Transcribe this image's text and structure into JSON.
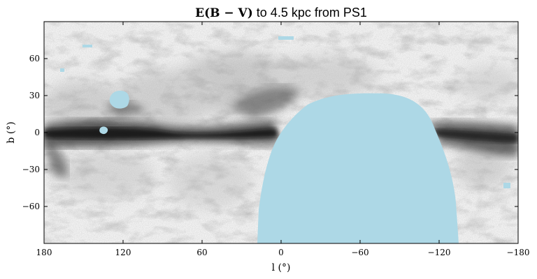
{
  "title": {
    "math": "E(B − V)",
    "text": " to 4.5 kpc from PS1"
  },
  "axes": {
    "xlabel": "l (°)",
    "ylabel": "b (°)",
    "xlim": [
      180,
      -180
    ],
    "ylim": [
      -90,
      90
    ],
    "xticks": [
      180,
      120,
      60,
      0,
      -60,
      -120,
      -180
    ],
    "yticks": [
      60,
      30,
      0,
      -30,
      -60
    ]
  },
  "tick_text": {
    "x": [
      "180",
      "120",
      "60",
      "0",
      "−60",
      "−120",
      "−180"
    ],
    "y": [
      "60",
      "30",
      "0",
      "−30",
      "−60"
    ]
  },
  "map": {
    "colormap": "grayscale (white = low, black = high extinction)",
    "no_data_color": "#add8e6",
    "grid": false,
    "no_data_regions": [
      {
        "name": "southern-sky-gap",
        "l_range": [
          15,
          -128
        ],
        "b_range": [
          -90,
          31
        ]
      },
      {
        "name": "no-data-patch",
        "center_l": 138,
        "center_b": 27
      },
      {
        "name": "no-data-patch",
        "center_l": 136,
        "center_b": 2
      }
    ]
  }
}
